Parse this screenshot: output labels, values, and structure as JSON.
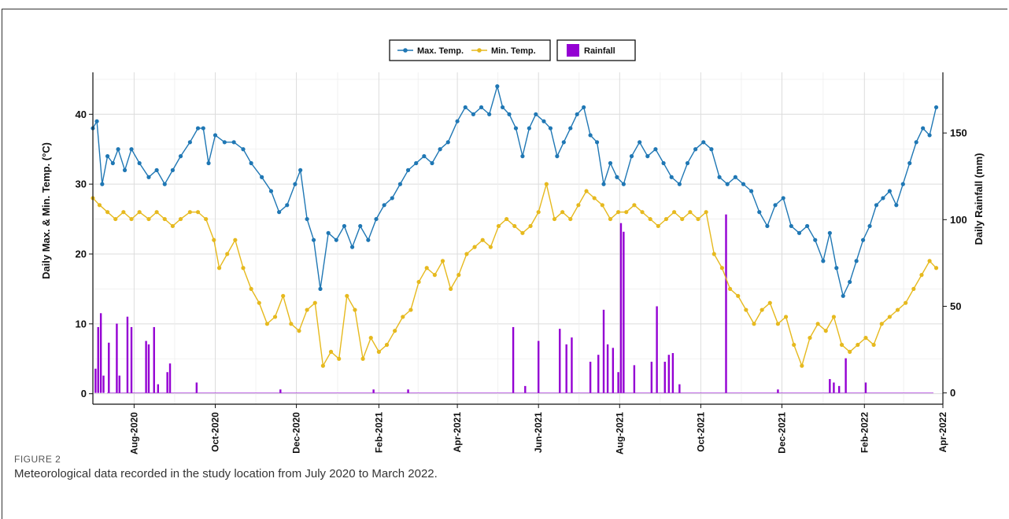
{
  "figure": {
    "label": "FIGURE 2",
    "caption": "Meteorological data recorded in the study location from July 2020 to March 2022."
  },
  "chart_data": {
    "type": "line",
    "x_type": "date",
    "xlim": [
      "2020-07-01",
      "2022-04-01"
    ],
    "x_ticks": [
      {
        "date": "2020-08-01",
        "label": "Aug-2020"
      },
      {
        "date": "2020-10-01",
        "label": "Oct-2020"
      },
      {
        "date": "2020-12-01",
        "label": "Dec-2020"
      },
      {
        "date": "2021-02-01",
        "label": "Feb-2021"
      },
      {
        "date": "2021-04-01",
        "label": "Apr-2021"
      },
      {
        "date": "2021-06-01",
        "label": "Jun-2021"
      },
      {
        "date": "2021-08-01",
        "label": "Aug-2021"
      },
      {
        "date": "2021-10-01",
        "label": "Oct-2021"
      },
      {
        "date": "2021-12-01",
        "label": "Dec-2021"
      },
      {
        "date": "2022-02-01",
        "label": "Feb-2022"
      },
      {
        "date": "2022-04-01",
        "label": "Apr-2022"
      }
    ],
    "ylabel": "Daily Max. & Min. Temp. (°C)",
    "ylim": [
      -1.5,
      46
    ],
    "y_ticks": [
      0,
      10,
      20,
      30,
      40
    ],
    "y2label": "Daily Rainfall (mm)",
    "y2lim": [
      -6.5,
      185
    ],
    "y2_ticks": [
      0,
      50,
      100,
      150
    ],
    "grid": true,
    "legend_position": "top",
    "series": [
      {
        "name": "Max. Temp.",
        "axis": "left",
        "kind": "line-markers",
        "color": "#1f77b4",
        "points": [
          [
            "2020-07-01",
            38
          ],
          [
            "2020-07-04",
            39
          ],
          [
            "2020-07-08",
            30
          ],
          [
            "2020-07-12",
            34
          ],
          [
            "2020-07-16",
            33
          ],
          [
            "2020-07-20",
            35
          ],
          [
            "2020-07-25",
            32
          ],
          [
            "2020-07-30",
            35
          ],
          [
            "2020-08-05",
            33
          ],
          [
            "2020-08-12",
            31
          ],
          [
            "2020-08-18",
            32
          ],
          [
            "2020-08-24",
            30
          ],
          [
            "2020-08-30",
            32
          ],
          [
            "2020-09-05",
            34
          ],
          [
            "2020-09-12",
            36
          ],
          [
            "2020-09-18",
            38
          ],
          [
            "2020-09-22",
            38
          ],
          [
            "2020-09-26",
            33
          ],
          [
            "2020-10-01",
            37
          ],
          [
            "2020-10-08",
            36
          ],
          [
            "2020-10-15",
            36
          ],
          [
            "2020-10-22",
            35
          ],
          [
            "2020-10-28",
            33
          ],
          [
            "2020-11-05",
            31
          ],
          [
            "2020-11-12",
            29
          ],
          [
            "2020-11-18",
            26
          ],
          [
            "2020-11-24",
            27
          ],
          [
            "2020-11-30",
            30
          ],
          [
            "2020-12-04",
            32
          ],
          [
            "2020-12-09",
            25
          ],
          [
            "2020-12-14",
            22
          ],
          [
            "2020-12-19",
            15
          ],
          [
            "2020-12-25",
            23
          ],
          [
            "2020-12-31",
            22
          ],
          [
            "2021-01-06",
            24
          ],
          [
            "2021-01-12",
            21
          ],
          [
            "2021-01-18",
            24
          ],
          [
            "2021-01-24",
            22
          ],
          [
            "2021-01-30",
            25
          ],
          [
            "2021-02-05",
            27
          ],
          [
            "2021-02-11",
            28
          ],
          [
            "2021-02-17",
            30
          ],
          [
            "2021-02-23",
            32
          ],
          [
            "2021-03-01",
            33
          ],
          [
            "2021-03-07",
            34
          ],
          [
            "2021-03-13",
            33
          ],
          [
            "2021-03-19",
            35
          ],
          [
            "2021-03-25",
            36
          ],
          [
            "2021-04-01",
            39
          ],
          [
            "2021-04-07",
            41
          ],
          [
            "2021-04-13",
            40
          ],
          [
            "2021-04-19",
            41
          ],
          [
            "2021-04-25",
            40
          ],
          [
            "2021-05-01",
            44
          ],
          [
            "2021-05-05",
            41
          ],
          [
            "2021-05-10",
            40
          ],
          [
            "2021-05-15",
            38
          ],
          [
            "2021-05-20",
            34
          ],
          [
            "2021-05-25",
            38
          ],
          [
            "2021-05-30",
            40
          ],
          [
            "2021-06-05",
            39
          ],
          [
            "2021-06-10",
            38
          ],
          [
            "2021-06-15",
            34
          ],
          [
            "2021-06-20",
            36
          ],
          [
            "2021-06-25",
            38
          ],
          [
            "2021-06-30",
            40
          ],
          [
            "2021-07-05",
            41
          ],
          [
            "2021-07-10",
            37
          ],
          [
            "2021-07-15",
            36
          ],
          [
            "2021-07-20",
            30
          ],
          [
            "2021-07-25",
            33
          ],
          [
            "2021-07-30",
            31
          ],
          [
            "2021-08-04",
            30
          ],
          [
            "2021-08-10",
            34
          ],
          [
            "2021-08-16",
            36
          ],
          [
            "2021-08-22",
            34
          ],
          [
            "2021-08-28",
            35
          ],
          [
            "2021-09-03",
            33
          ],
          [
            "2021-09-09",
            31
          ],
          [
            "2021-09-15",
            30
          ],
          [
            "2021-09-21",
            33
          ],
          [
            "2021-09-27",
            35
          ],
          [
            "2021-10-03",
            36
          ],
          [
            "2021-10-09",
            35
          ],
          [
            "2021-10-15",
            31
          ],
          [
            "2021-10-21",
            30
          ],
          [
            "2021-10-27",
            31
          ],
          [
            "2021-11-02",
            30
          ],
          [
            "2021-11-08",
            29
          ],
          [
            "2021-11-14",
            26
          ],
          [
            "2021-11-20",
            24
          ],
          [
            "2021-11-26",
            27
          ],
          [
            "2021-12-02",
            28
          ],
          [
            "2021-12-08",
            24
          ],
          [
            "2021-12-14",
            23
          ],
          [
            "2021-12-20",
            24
          ],
          [
            "2021-12-26",
            22
          ],
          [
            "2022-01-01",
            19
          ],
          [
            "2022-01-06",
            23
          ],
          [
            "2022-01-11",
            18
          ],
          [
            "2022-01-16",
            14
          ],
          [
            "2022-01-21",
            16
          ],
          [
            "2022-01-26",
            19
          ],
          [
            "2022-01-31",
            22
          ],
          [
            "2022-02-05",
            24
          ],
          [
            "2022-02-10",
            27
          ],
          [
            "2022-02-15",
            28
          ],
          [
            "2022-02-20",
            29
          ],
          [
            "2022-02-25",
            27
          ],
          [
            "2022-03-02",
            30
          ],
          [
            "2022-03-07",
            33
          ],
          [
            "2022-03-12",
            36
          ],
          [
            "2022-03-17",
            38
          ],
          [
            "2022-03-22",
            37
          ],
          [
            "2022-03-27",
            41
          ]
        ]
      },
      {
        "name": "Min. Temp.",
        "axis": "left",
        "kind": "line-markers",
        "color": "#e6b91e",
        "points": [
          [
            "2020-07-01",
            28
          ],
          [
            "2020-07-06",
            27
          ],
          [
            "2020-07-12",
            26
          ],
          [
            "2020-07-18",
            25
          ],
          [
            "2020-07-24",
            26
          ],
          [
            "2020-07-30",
            25
          ],
          [
            "2020-08-05",
            26
          ],
          [
            "2020-08-12",
            25
          ],
          [
            "2020-08-18",
            26
          ],
          [
            "2020-08-24",
            25
          ],
          [
            "2020-08-30",
            24
          ],
          [
            "2020-09-05",
            25
          ],
          [
            "2020-09-12",
            26
          ],
          [
            "2020-09-18",
            26
          ],
          [
            "2020-09-24",
            25
          ],
          [
            "2020-09-30",
            22
          ],
          [
            "2020-10-04",
            18
          ],
          [
            "2020-10-10",
            20
          ],
          [
            "2020-10-16",
            22
          ],
          [
            "2020-10-22",
            18
          ],
          [
            "2020-10-28",
            15
          ],
          [
            "2020-11-03",
            13
          ],
          [
            "2020-11-09",
            10
          ],
          [
            "2020-11-15",
            11
          ],
          [
            "2020-11-21",
            14
          ],
          [
            "2020-11-27",
            10
          ],
          [
            "2020-12-03",
            9
          ],
          [
            "2020-12-09",
            12
          ],
          [
            "2020-12-15",
            13
          ],
          [
            "2020-12-21",
            4
          ],
          [
            "2020-12-27",
            6
          ],
          [
            "2021-01-02",
            5
          ],
          [
            "2021-01-08",
            14
          ],
          [
            "2021-01-14",
            12
          ],
          [
            "2021-01-20",
            5
          ],
          [
            "2021-01-26",
            8
          ],
          [
            "2021-02-01",
            6
          ],
          [
            "2021-02-07",
            7
          ],
          [
            "2021-02-13",
            9
          ],
          [
            "2021-02-19",
            11
          ],
          [
            "2021-02-25",
            12
          ],
          [
            "2021-03-03",
            16
          ],
          [
            "2021-03-09",
            18
          ],
          [
            "2021-03-15",
            17
          ],
          [
            "2021-03-21",
            19
          ],
          [
            "2021-03-27",
            15
          ],
          [
            "2021-04-02",
            17
          ],
          [
            "2021-04-08",
            20
          ],
          [
            "2021-04-14",
            21
          ],
          [
            "2021-04-20",
            22
          ],
          [
            "2021-04-26",
            21
          ],
          [
            "2021-05-02",
            24
          ],
          [
            "2021-05-08",
            25
          ],
          [
            "2021-05-14",
            24
          ],
          [
            "2021-05-20",
            23
          ],
          [
            "2021-05-26",
            24
          ],
          [
            "2021-06-01",
            26
          ],
          [
            "2021-06-07",
            30
          ],
          [
            "2021-06-13",
            25
          ],
          [
            "2021-06-19",
            26
          ],
          [
            "2021-06-25",
            25
          ],
          [
            "2021-07-01",
            27
          ],
          [
            "2021-07-07",
            29
          ],
          [
            "2021-07-13",
            28
          ],
          [
            "2021-07-19",
            27
          ],
          [
            "2021-07-25",
            25
          ],
          [
            "2021-07-31",
            26
          ],
          [
            "2021-08-06",
            26
          ],
          [
            "2021-08-12",
            27
          ],
          [
            "2021-08-18",
            26
          ],
          [
            "2021-08-24",
            25
          ],
          [
            "2021-08-30",
            24
          ],
          [
            "2021-09-05",
            25
          ],
          [
            "2021-09-11",
            26
          ],
          [
            "2021-09-17",
            25
          ],
          [
            "2021-09-23",
            26
          ],
          [
            "2021-09-29",
            25
          ],
          [
            "2021-10-05",
            26
          ],
          [
            "2021-10-11",
            20
          ],
          [
            "2021-10-17",
            18
          ],
          [
            "2021-10-23",
            15
          ],
          [
            "2021-10-29",
            14
          ],
          [
            "2021-11-04",
            12
          ],
          [
            "2021-11-10",
            10
          ],
          [
            "2021-11-16",
            12
          ],
          [
            "2021-11-22",
            13
          ],
          [
            "2021-11-28",
            10
          ],
          [
            "2021-12-04",
            11
          ],
          [
            "2021-12-10",
            7
          ],
          [
            "2021-12-16",
            4
          ],
          [
            "2021-12-22",
            8
          ],
          [
            "2021-12-28",
            10
          ],
          [
            "2022-01-03",
            9
          ],
          [
            "2022-01-09",
            11
          ],
          [
            "2022-01-15",
            7
          ],
          [
            "2022-01-21",
            6
          ],
          [
            "2022-01-27",
            7
          ],
          [
            "2022-02-02",
            8
          ],
          [
            "2022-02-08",
            7
          ],
          [
            "2022-02-14",
            10
          ],
          [
            "2022-02-20",
            11
          ],
          [
            "2022-02-26",
            12
          ],
          [
            "2022-03-04",
            13
          ],
          [
            "2022-03-10",
            15
          ],
          [
            "2022-03-16",
            17
          ],
          [
            "2022-03-22",
            19
          ],
          [
            "2022-03-27",
            18
          ]
        ]
      },
      {
        "name": "Rainfall",
        "axis": "right",
        "kind": "bar",
        "color": "#9400d3",
        "points": [
          [
            "2020-07-03",
            14
          ],
          [
            "2020-07-05",
            38
          ],
          [
            "2020-07-07",
            46
          ],
          [
            "2020-07-09",
            10
          ],
          [
            "2020-07-13",
            29
          ],
          [
            "2020-07-19",
            40
          ],
          [
            "2020-07-21",
            10
          ],
          [
            "2020-07-27",
            44
          ],
          [
            "2020-07-30",
            38
          ],
          [
            "2020-08-10",
            30
          ],
          [
            "2020-08-12",
            28
          ],
          [
            "2020-08-16",
            38
          ],
          [
            "2020-08-19",
            5
          ],
          [
            "2020-08-26",
            12
          ],
          [
            "2020-08-28",
            17
          ],
          [
            "2020-09-17",
            6
          ],
          [
            "2020-11-19",
            2
          ],
          [
            "2021-01-28",
            2
          ],
          [
            "2021-02-23",
            2
          ],
          [
            "2021-05-13",
            38
          ],
          [
            "2021-05-22",
            4
          ],
          [
            "2021-06-01",
            30
          ],
          [
            "2021-06-17",
            37
          ],
          [
            "2021-06-22",
            28
          ],
          [
            "2021-06-26",
            32
          ],
          [
            "2021-07-10",
            18
          ],
          [
            "2021-07-16",
            22
          ],
          [
            "2021-07-20",
            48
          ],
          [
            "2021-07-23",
            28
          ],
          [
            "2021-07-27",
            26
          ],
          [
            "2021-07-31",
            12
          ],
          [
            "2021-08-02",
            98
          ],
          [
            "2021-08-04",
            93
          ],
          [
            "2021-08-12",
            16
          ],
          [
            "2021-08-25",
            18
          ],
          [
            "2021-08-29",
            50
          ],
          [
            "2021-09-04",
            18
          ],
          [
            "2021-09-07",
            22
          ],
          [
            "2021-09-10",
            23
          ],
          [
            "2021-09-15",
            5
          ],
          [
            "2021-10-20",
            103
          ],
          [
            "2021-11-28",
            2
          ],
          [
            "2022-01-06",
            8
          ],
          [
            "2022-01-09",
            6
          ],
          [
            "2022-01-13",
            4
          ],
          [
            "2022-01-18",
            20
          ],
          [
            "2022-02-02",
            6
          ]
        ]
      }
    ]
  }
}
